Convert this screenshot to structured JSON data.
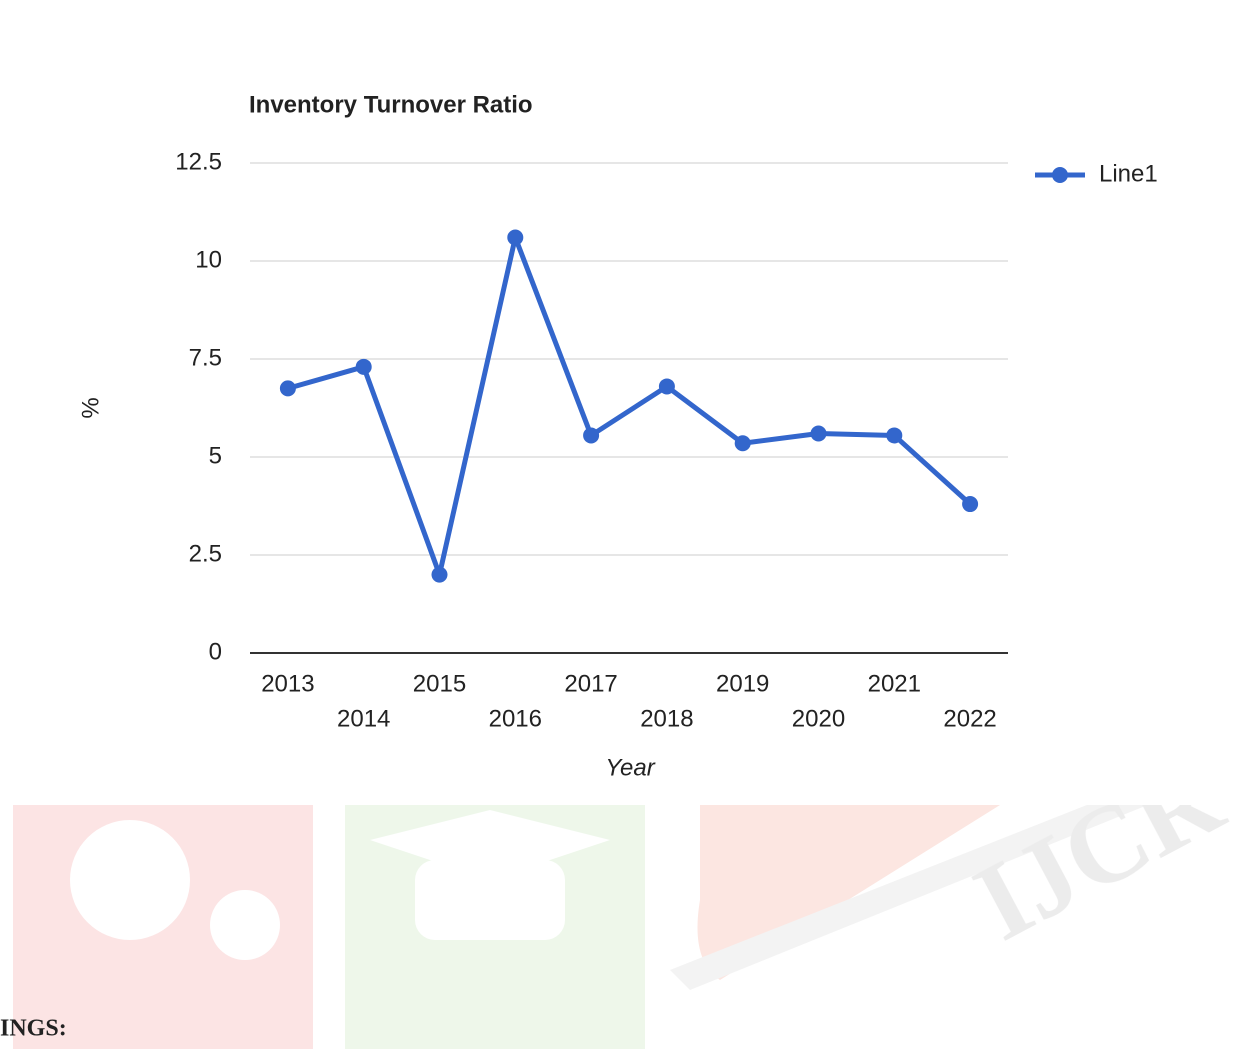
{
  "chart_data": {
    "type": "line",
    "title": "Inventory Turnover Ratio",
    "x_label": "Year",
    "y_label": "%",
    "categories": [
      "2013",
      "2014",
      "2015",
      "2016",
      "2017",
      "2018",
      "2019",
      "2020",
      "2021",
      "2022"
    ],
    "series": [
      {
        "name": "Line1",
        "color": "#3366cc",
        "values": [
          6.75,
          7.3,
          2,
          10.6,
          5.55,
          6.8,
          5.35,
          5.6,
          5.55,
          3.8
        ]
      }
    ],
    "ylim": [
      0,
      12.5
    ],
    "yticks": [
      0,
      2.5,
      5,
      7.5,
      10,
      12.5
    ],
    "grid": true,
    "legend": "right"
  },
  "page_text": "INGS:"
}
